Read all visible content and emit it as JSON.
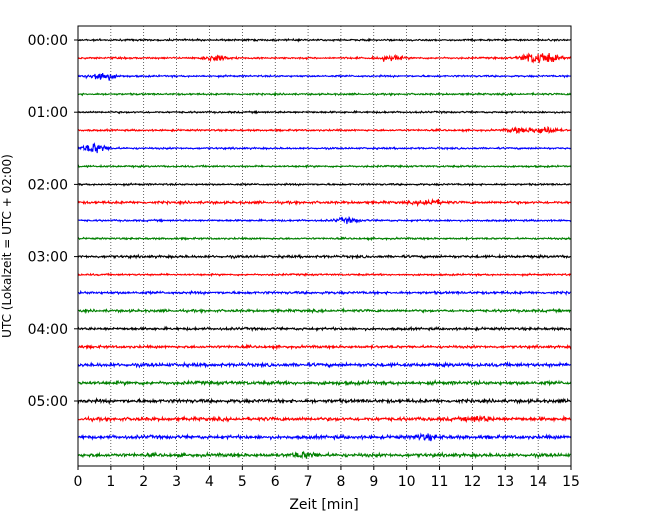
{
  "chart_data": {
    "type": "line",
    "title": "",
    "xlabel": "Zeit  [min]",
    "ylabel": "UTC (Lokalzeit = UTC + 02:00)",
    "xlim": [
      0,
      15
    ],
    "xticks": [
      "0",
      "1",
      "2",
      "3",
      "4",
      "5",
      "6",
      "7",
      "8",
      "9",
      "10",
      "11",
      "12",
      "13",
      "14",
      "15"
    ],
    "yticks": [
      "00:00",
      "01:00",
      "02:00",
      "03:00",
      "04:00",
      "05:00"
    ],
    "grid": "vertical dotted lines at each minute",
    "legend": "none",
    "colors": [
      "#000000",
      "#ff0000",
      "#0000ff",
      "#008000"
    ],
    "rows": [
      {
        "start": "00:00",
        "color": "#000000",
        "noise": "low",
        "events": []
      },
      {
        "start": "00:15",
        "color": "#ff0000",
        "noise": "low",
        "events": [
          [
            4.2,
            0.55
          ],
          [
            9.5,
            0.45
          ],
          [
            13.8,
            0.8
          ],
          [
            14.3,
            0.75
          ]
        ]
      },
      {
        "start": "00:30",
        "color": "#0000ff",
        "noise": "low",
        "events": [
          [
            0.7,
            0.9
          ]
        ]
      },
      {
        "start": "00:45",
        "color": "#008000",
        "noise": "low",
        "events": []
      },
      {
        "start": "01:00",
        "color": "#000000",
        "noise": "low",
        "events": []
      },
      {
        "start": "01:15",
        "color": "#ff0000",
        "noise": "low",
        "events": [
          [
            14.2,
            0.7
          ],
          [
            13.4,
            0.4
          ]
        ]
      },
      {
        "start": "01:30",
        "color": "#0000ff",
        "noise": "low",
        "events": [
          [
            0.5,
            0.9
          ]
        ]
      },
      {
        "start": "01:45",
        "color": "#008000",
        "noise": "low",
        "events": []
      },
      {
        "start": "02:00",
        "color": "#000000",
        "noise": "low",
        "events": []
      },
      {
        "start": "02:15",
        "color": "#ff0000",
        "noise": "medium",
        "events": [
          [
            10.7,
            0.5
          ]
        ]
      },
      {
        "start": "02:30",
        "color": "#0000ff",
        "noise": "low",
        "events": [
          [
            8.2,
            0.4
          ]
        ]
      },
      {
        "start": "02:45",
        "color": "#008000",
        "noise": "low",
        "events": []
      },
      {
        "start": "03:00",
        "color": "#000000",
        "noise": "medium",
        "events": []
      },
      {
        "start": "03:15",
        "color": "#ff0000",
        "noise": "low",
        "events": []
      },
      {
        "start": "03:30",
        "color": "#0000ff",
        "noise": "medium",
        "events": []
      },
      {
        "start": "03:45",
        "color": "#008000",
        "noise": "medium",
        "events": []
      },
      {
        "start": "04:00",
        "color": "#000000",
        "noise": "medium",
        "events": []
      },
      {
        "start": "04:15",
        "color": "#ff0000",
        "noise": "medium",
        "events": []
      },
      {
        "start": "04:30",
        "color": "#0000ff",
        "noise": "high",
        "events": []
      },
      {
        "start": "04:45",
        "color": "#008000",
        "noise": "high",
        "events": []
      },
      {
        "start": "05:00",
        "color": "#000000",
        "noise": "high",
        "events": []
      },
      {
        "start": "05:15",
        "color": "#ff0000",
        "noise": "high",
        "events": [
          [
            12.2,
            0.4
          ]
        ]
      },
      {
        "start": "05:30",
        "color": "#0000ff",
        "noise": "high",
        "events": [
          [
            10.6,
            0.4
          ]
        ]
      },
      {
        "start": "05:45",
        "color": "#008000",
        "noise": "high",
        "events": [
          [
            6.9,
            0.45
          ]
        ]
      }
    ]
  }
}
